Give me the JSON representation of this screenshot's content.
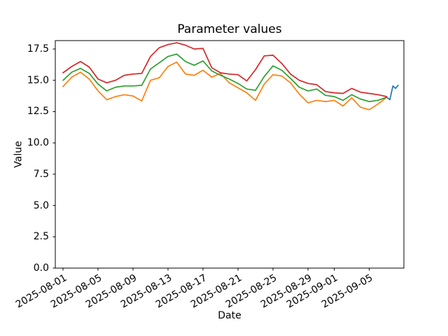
{
  "figure": {
    "title": "Parameter values",
    "xlabel": "Date",
    "ylabel": "Value"
  },
  "chart_data": {
    "type": "line",
    "title": "Parameter values",
    "xlabel": "Date",
    "ylabel": "Value",
    "grid": false,
    "legend": "none",
    "background_color": "#ffffff",
    "axis_color": "#000000",
    "x_unit": "days since 2025-08-01",
    "x_start_date": "2025-08-01",
    "x_end_date": "2025-09-07",
    "xlim_days": [
      -0.9,
      39.0
    ],
    "ylim": [
      0,
      18.2
    ],
    "y_ticks": [
      {
        "label": "0.0",
        "value": 0
      },
      {
        "label": "2.5",
        "value": 2.5
      },
      {
        "label": "5.0",
        "value": 5
      },
      {
        "label": "7.5",
        "value": 7.5
      },
      {
        "label": "10.0",
        "value": 10
      },
      {
        "label": "12.5",
        "value": 12.5
      },
      {
        "label": "15.0",
        "value": 15
      },
      {
        "label": "17.5",
        "value": 17.5
      }
    ],
    "x_ticks": [
      {
        "label": "2025-08-01",
        "day": 0
      },
      {
        "label": "2025-08-05",
        "day": 4
      },
      {
        "label": "2025-08-09",
        "day": 8
      },
      {
        "label": "2025-08-13",
        "day": 12
      },
      {
        "label": "2025-08-17",
        "day": 16
      },
      {
        "label": "2025-08-21",
        "day": 20
      },
      {
        "label": "2025-08-25",
        "day": 24
      },
      {
        "label": "2025-08-29",
        "day": 28
      },
      {
        "label": "2025-09-01",
        "day": 31
      },
      {
        "label": "2025-09-05",
        "day": 35
      }
    ],
    "series": [
      {
        "name": "orange-line",
        "color": "#ff7f0e",
        "x_start_day": 0,
        "x_step": 1,
        "values": [
          14.5,
          15.25,
          15.65,
          15.1,
          14.15,
          13.45,
          13.7,
          13.85,
          13.75,
          13.35,
          15.0,
          15.2,
          16.1,
          16.45,
          15.5,
          15.4,
          15.8,
          15.25,
          15.55,
          14.8,
          14.4,
          14.0,
          13.4,
          14.7,
          15.45,
          15.35,
          14.8,
          13.9,
          13.2,
          13.4,
          13.3,
          13.4,
          12.95,
          13.6,
          12.85,
          12.65,
          13.1,
          13.65
        ]
      },
      {
        "name": "green-line",
        "color": "#2ca02c",
        "x_start_day": 0,
        "x_step": 1,
        "values": [
          15.0,
          15.65,
          15.95,
          15.55,
          14.7,
          14.15,
          14.45,
          14.55,
          14.55,
          14.6,
          15.9,
          16.4,
          16.9,
          17.1,
          16.5,
          16.2,
          16.55,
          15.75,
          15.4,
          15.1,
          14.75,
          14.3,
          14.2,
          15.3,
          16.15,
          15.8,
          15.15,
          14.45,
          14.15,
          14.3,
          13.8,
          13.7,
          13.4,
          13.85,
          13.5,
          13.3,
          13.4,
          13.65
        ]
      },
      {
        "name": "red-line",
        "color": "#d62728",
        "x_start_day": 0,
        "x_step": 1,
        "values": [
          15.6,
          16.1,
          16.5,
          16.05,
          15.1,
          14.8,
          15.0,
          15.4,
          15.5,
          15.55,
          16.9,
          17.6,
          17.85,
          18.0,
          17.8,
          17.5,
          17.55,
          16.0,
          15.6,
          15.5,
          15.45,
          14.95,
          15.85,
          16.95,
          17.0,
          16.35,
          15.5,
          15.0,
          14.75,
          14.65,
          14.1,
          14.0,
          13.95,
          14.35,
          14.05,
          13.95,
          13.85,
          13.7
        ]
      },
      {
        "name": "blue-line",
        "color": "#1f77b4",
        "x_days": [
          37.0,
          37.35,
          37.7,
          38.0,
          38.3
        ],
        "values": [
          13.65,
          13.45,
          14.55,
          14.35,
          14.6
        ]
      }
    ]
  }
}
